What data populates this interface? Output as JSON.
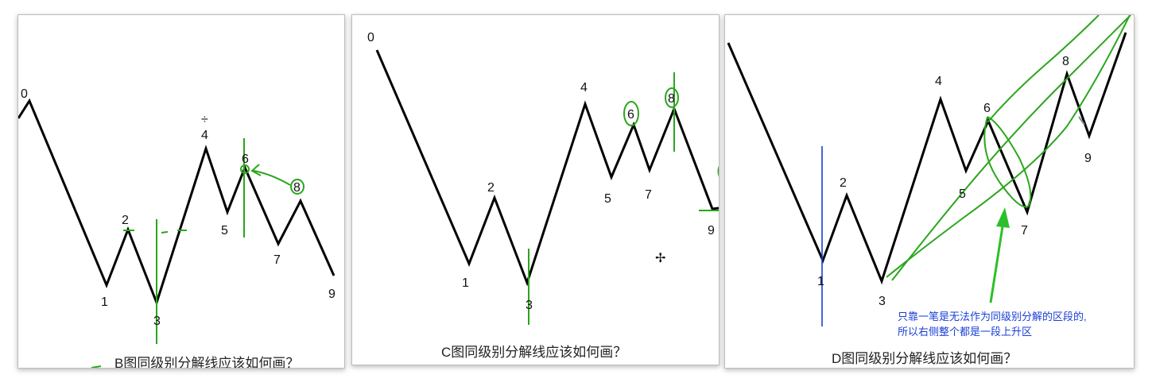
{
  "panels": [
    {
      "id": "B",
      "caption": "B图同级别分解线应该如何画？",
      "points": [
        {
          "label": "0"
        },
        {
          "label": "1"
        },
        {
          "label": "2"
        },
        {
          "label": "3"
        },
        {
          "label": "4"
        },
        {
          "label": "5"
        },
        {
          "label": "6"
        },
        {
          "label": "7"
        },
        {
          "label": "8"
        },
        {
          "label": "9"
        }
      ]
    },
    {
      "id": "C",
      "caption": "C图同级别分解线应该如何画？",
      "points": [
        {
          "label": "0"
        },
        {
          "label": "1"
        },
        {
          "label": "2"
        },
        {
          "label": "3"
        },
        {
          "label": "4"
        },
        {
          "label": "5"
        },
        {
          "label": "6"
        },
        {
          "label": "7"
        },
        {
          "label": "8"
        },
        {
          "label": "9"
        }
      ]
    },
    {
      "id": "D",
      "caption": "D图同级别分解线应该如何画？",
      "note_lines": [
        "只靠一笔是无法作为同级别分解的区段的,",
        "所以右侧整个都是一段上升区"
      ],
      "points": [
        {
          "label": "1"
        },
        {
          "label": "2"
        },
        {
          "label": "3"
        },
        {
          "label": "4"
        },
        {
          "label": "5"
        },
        {
          "label": "6"
        },
        {
          "label": "7"
        },
        {
          "label": "8"
        },
        {
          "label": "9"
        }
      ]
    }
  ],
  "colors": {
    "wave": "#000000",
    "annotation_green": "#2aa61c",
    "annotation_blue": "#1a3fd6"
  }
}
